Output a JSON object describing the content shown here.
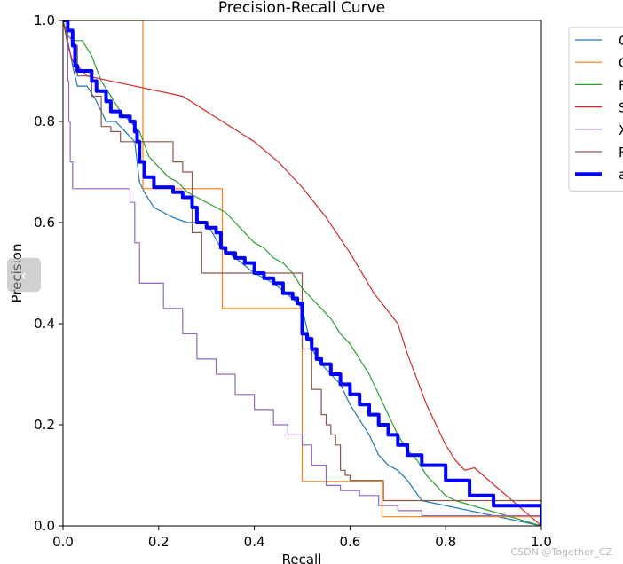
{
  "chart_data": {
    "type": "line",
    "title": "Precision-Recall Curve",
    "xlabel": "Recall",
    "ylabel": "Precision",
    "xlim": [
      0.0,
      1.0
    ],
    "ylim": [
      0.0,
      1.0
    ],
    "xticks": [
      "0.0",
      "0.2",
      "0.4",
      "0.6",
      "0.8",
      "1.0"
    ],
    "yticks": [
      "0.0",
      "0.2",
      "0.4",
      "0.6",
      "0.8",
      "1.0"
    ],
    "legend_position": "outside-top-right",
    "series": [
      {
        "name": "C",
        "color": "#1f77b4",
        "width": 1.2,
        "step": false,
        "x": [
          0.0,
          0.01,
          0.02,
          0.03,
          0.05,
          0.07,
          0.09,
          0.11,
          0.13,
          0.15,
          0.16,
          0.17,
          0.19,
          0.21,
          0.23,
          0.26,
          0.3,
          0.33,
          0.36,
          0.4,
          0.44,
          0.48,
          0.5,
          0.52,
          0.54,
          0.56,
          0.58,
          0.6,
          0.62,
          0.64,
          0.66,
          0.68,
          0.7,
          0.72,
          0.75,
          1.0
        ],
        "y": [
          1.0,
          0.96,
          0.91,
          0.87,
          0.87,
          0.84,
          0.8,
          0.8,
          0.78,
          0.76,
          0.68,
          0.66,
          0.63,
          0.62,
          0.61,
          0.6,
          0.6,
          0.55,
          0.53,
          0.5,
          0.48,
          0.45,
          0.43,
          0.35,
          0.32,
          0.3,
          0.28,
          0.24,
          0.21,
          0.18,
          0.14,
          0.12,
          0.11,
          0.09,
          0.05,
          0.0
        ]
      },
      {
        "name": "C",
        "color": "#ff7f0e",
        "width": 1.2,
        "step": true,
        "x": [
          0.0,
          0.01,
          0.01,
          0.167,
          0.167,
          0.333,
          0.333,
          0.5,
          0.5,
          0.667,
          0.667,
          1.0
        ],
        "y": [
          1.0,
          1.0,
          1.0,
          1.0,
          0.667,
          0.667,
          0.43,
          0.43,
          0.088,
          0.088,
          0.018,
          0.0
        ]
      },
      {
        "name": "F",
        "color": "#2ca02c",
        "width": 1.2,
        "step": false,
        "x": [
          0.0,
          0.01,
          0.02,
          0.04,
          0.06,
          0.08,
          0.1,
          0.12,
          0.14,
          0.16,
          0.18,
          0.2,
          0.22,
          0.24,
          0.26,
          0.28,
          0.3,
          0.32,
          0.34,
          0.36,
          0.38,
          0.4,
          0.42,
          0.44,
          0.46,
          0.48,
          0.5,
          0.52,
          0.54,
          0.56,
          0.58,
          0.6,
          0.62,
          0.64,
          0.66,
          0.68,
          0.7,
          0.72,
          0.74,
          0.76,
          0.78,
          0.8,
          0.82,
          1.0
        ],
        "y": [
          1.0,
          0.97,
          0.96,
          0.96,
          0.93,
          0.88,
          0.85,
          0.82,
          0.8,
          0.78,
          0.73,
          0.71,
          0.69,
          0.68,
          0.66,
          0.65,
          0.64,
          0.63,
          0.62,
          0.6,
          0.58,
          0.56,
          0.55,
          0.53,
          0.52,
          0.5,
          0.47,
          0.45,
          0.43,
          0.41,
          0.38,
          0.36,
          0.33,
          0.3,
          0.26,
          0.22,
          0.18,
          0.15,
          0.13,
          0.1,
          0.08,
          0.06,
          0.05,
          0.0
        ]
      },
      {
        "name": "S",
        "color": "#d62728",
        "width": 1.2,
        "step": false,
        "x": [
          0.0,
          0.01,
          0.02,
          0.05,
          0.1,
          0.15,
          0.2,
          0.25,
          0.3,
          0.35,
          0.4,
          0.45,
          0.5,
          0.55,
          0.6,
          0.65,
          0.7,
          0.72,
          0.74,
          0.76,
          0.78,
          0.8,
          0.82,
          0.84,
          0.86,
          1.0
        ],
        "y": [
          1.0,
          0.95,
          0.92,
          0.89,
          0.88,
          0.87,
          0.86,
          0.85,
          0.82,
          0.79,
          0.76,
          0.72,
          0.67,
          0.61,
          0.54,
          0.46,
          0.4,
          0.34,
          0.29,
          0.24,
          0.2,
          0.16,
          0.13,
          0.11,
          0.115,
          0.0
        ]
      },
      {
        "name": "X",
        "color": "#9467bd",
        "width": 1.2,
        "step": true,
        "x": [
          0.0,
          0.01,
          0.01,
          0.012,
          0.015,
          0.02,
          0.13,
          0.14,
          0.15,
          0.16,
          0.18,
          0.21,
          0.25,
          0.28,
          0.32,
          0.36,
          0.4,
          0.44,
          0.47,
          0.5,
          0.52,
          0.55,
          0.58,
          0.62,
          0.66,
          0.7,
          0.75,
          1.0
        ],
        "y": [
          1.0,
          1.0,
          0.88,
          0.8,
          0.72,
          0.667,
          0.667,
          0.64,
          0.56,
          0.48,
          0.48,
          0.43,
          0.38,
          0.33,
          0.3,
          0.26,
          0.23,
          0.2,
          0.18,
          0.16,
          0.12,
          0.08,
          0.07,
          0.06,
          0.04,
          0.03,
          0.02,
          0.0
        ]
      },
      {
        "name": "F",
        "color": "#8c564b",
        "width": 1.2,
        "step": true,
        "x": [
          0.0,
          0.01,
          0.02,
          0.03,
          0.06,
          0.08,
          0.1,
          0.12,
          0.15,
          0.17,
          0.19,
          0.23,
          0.25,
          0.27,
          0.29,
          0.31,
          0.33,
          0.4,
          0.44,
          0.47,
          0.5,
          0.52,
          0.54,
          0.55,
          0.56,
          0.57,
          0.58,
          0.59,
          0.6,
          0.67,
          1.0
        ],
        "y": [
          1.0,
          0.98,
          0.95,
          0.89,
          0.85,
          0.79,
          0.78,
          0.76,
          0.76,
          0.76,
          0.76,
          0.72,
          0.7,
          0.58,
          0.5,
          0.5,
          0.5,
          0.5,
          0.5,
          0.5,
          0.35,
          0.27,
          0.22,
          0.2,
          0.18,
          0.16,
          0.11,
          0.1,
          0.09,
          0.05,
          0.0
        ]
      },
      {
        "name": "a",
        "color": "#0000ff",
        "width": 4.0,
        "step": true,
        "x": [
          0.0,
          0.01,
          0.02,
          0.025,
          0.03,
          0.06,
          0.07,
          0.09,
          0.1,
          0.12,
          0.14,
          0.15,
          0.155,
          0.16,
          0.17,
          0.19,
          0.21,
          0.23,
          0.25,
          0.27,
          0.28,
          0.3,
          0.32,
          0.33,
          0.34,
          0.36,
          0.38,
          0.4,
          0.42,
          0.44,
          0.46,
          0.48,
          0.49,
          0.5,
          0.51,
          0.52,
          0.53,
          0.54,
          0.56,
          0.58,
          0.6,
          0.62,
          0.64,
          0.66,
          0.68,
          0.7,
          0.72,
          0.75,
          0.8,
          0.85,
          0.9,
          1.0
        ],
        "y": [
          1.0,
          0.98,
          0.95,
          0.91,
          0.9,
          0.88,
          0.86,
          0.84,
          0.82,
          0.81,
          0.8,
          0.78,
          0.76,
          0.72,
          0.69,
          0.67,
          0.67,
          0.66,
          0.65,
          0.63,
          0.6,
          0.59,
          0.58,
          0.55,
          0.54,
          0.53,
          0.52,
          0.5,
          0.49,
          0.48,
          0.46,
          0.45,
          0.44,
          0.38,
          0.37,
          0.35,
          0.33,
          0.32,
          0.3,
          0.28,
          0.26,
          0.24,
          0.22,
          0.2,
          0.18,
          0.16,
          0.14,
          0.12,
          0.09,
          0.06,
          0.04,
          0.0
        ]
      }
    ]
  },
  "ui": {
    "nav_handle_glyph": "‹",
    "watermark": "CSDN @Together_CZ"
  }
}
